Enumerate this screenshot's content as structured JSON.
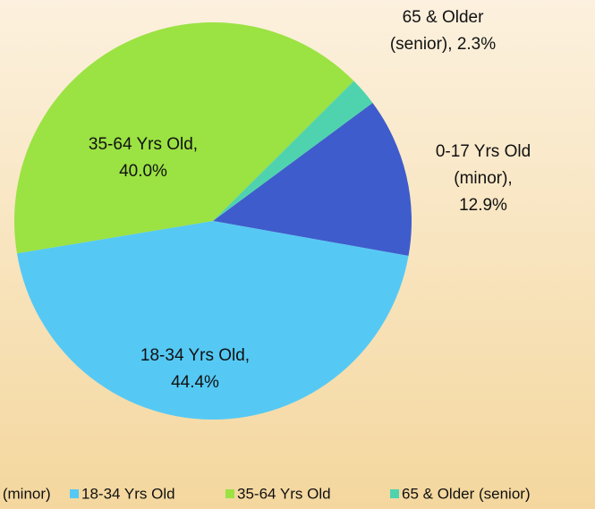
{
  "chart_data": {
    "type": "pie",
    "categories": [
      "0-17 Yrs Old (minor)",
      "18-34 Yrs Old",
      "35-64 Yrs Old",
      "65 & Older (senior)"
    ],
    "values": [
      12.9,
      44.4,
      40.0,
      2.3
    ],
    "colors": [
      "#3f5ccc",
      "#55c9f4",
      "#9be243",
      "#4fd3ae"
    ],
    "data_labels": [
      [
        "0-17 Yrs Old",
        "(minor),",
        "12.9%"
      ],
      [
        "18-34 Yrs Old,",
        "44.4%"
      ],
      [
        "35-64 Yrs Old,",
        "40.0%"
      ],
      [
        "65 & Older",
        "(senior), 2.3%"
      ]
    ],
    "legend": "bottom"
  }
}
